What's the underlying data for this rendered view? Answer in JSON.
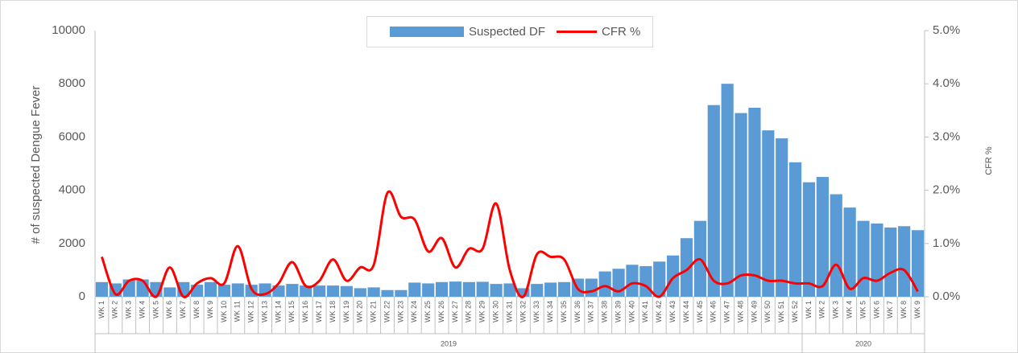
{
  "chart_data": {
    "type": "bar_line",
    "categories": [
      "WK 1",
      "WK 2",
      "WK 3",
      "WK 4",
      "WK 5",
      "WK 6",
      "WK 7",
      "WK 8",
      "WK 9",
      "WK 10",
      "WK 11",
      "WK 12",
      "WK 13",
      "WK 14",
      "WK 15",
      "WK 16",
      "WK 17",
      "WK 18",
      "WK 19",
      "WK 20",
      "WK 21",
      "WK 22",
      "WK 23",
      "WK 24",
      "WK 25",
      "WK 26",
      "WK 27",
      "WK 28",
      "WK 29",
      "WK 30",
      "WK 31",
      "WK 32",
      "WK 33",
      "WK 34",
      "WK 35",
      "WK 36",
      "WK 37",
      "WK 38",
      "WK 39",
      "WK 40",
      "WK 41",
      "WK 42",
      "WK 43",
      "WK 44",
      "WK 45",
      "WK 46",
      "WK 47",
      "WK 48",
      "WK 49",
      "WK 50",
      "WK 51",
      "WK 52",
      "WK 1",
      "WK 2",
      "WK 3",
      "WK 4",
      "WK 5",
      "WK 6",
      "WK 7",
      "WK 8",
      "WK 9"
    ],
    "groups": [
      "2019",
      "2020"
    ],
    "series": [
      {
        "name": "Suspected DF",
        "type": "bar",
        "color": "#5b9bd5",
        "values": [
          550,
          500,
          650,
          650,
          550,
          350,
          550,
          450,
          550,
          450,
          500,
          450,
          500,
          420,
          480,
          420,
          420,
          420,
          400,
          320,
          350,
          250,
          250,
          530,
          500,
          550,
          570,
          550,
          560,
          480,
          500,
          320,
          480,
          530,
          550,
          680,
          680,
          950,
          1050,
          1200,
          1150,
          1320,
          1550,
          2200,
          2850,
          7200,
          8000,
          6900,
          7100,
          6250,
          5950,
          5050,
          4300,
          4500,
          3850,
          3350,
          2850,
          2750,
          2600,
          2650,
          2500
        ]
      },
      {
        "name": "CFR %",
        "type": "line",
        "axis": "y2",
        "color": "#ff0000",
        "values": [
          0.75,
          0.05,
          0.3,
          0.3,
          0.0,
          0.55,
          0.0,
          0.25,
          0.35,
          0.25,
          0.95,
          0.15,
          0.05,
          0.25,
          0.65,
          0.2,
          0.3,
          0.7,
          0.3,
          0.55,
          0.6,
          1.95,
          1.5,
          1.45,
          0.85,
          1.1,
          0.55,
          0.9,
          0.9,
          1.75,
          0.5,
          0.0,
          0.8,
          0.75,
          0.7,
          0.15,
          0.1,
          0.2,
          0.1,
          0.25,
          0.2,
          0.0,
          0.35,
          0.5,
          0.7,
          0.3,
          0.25,
          0.4,
          0.4,
          0.3,
          0.3,
          0.25,
          0.25,
          0.2,
          0.6,
          0.15,
          0.35,
          0.3,
          0.45,
          0.5,
          0.1
        ]
      }
    ],
    "y_label": "# of suspected Dengue Fever",
    "y2_label": "CFR %",
    "ylim": [
      0,
      10000
    ],
    "yticks": [
      0,
      2000,
      4000,
      6000,
      8000,
      10000
    ],
    "y2lim": [
      0,
      5
    ],
    "y2ticks": [
      {
        "value": 0,
        "label": "0.0%"
      },
      {
        "value": 1,
        "label": "1.0%"
      },
      {
        "value": 2,
        "label": "2.0%"
      },
      {
        "value": 3,
        "label": "3.0%"
      },
      {
        "value": 4,
        "label": "4.0%"
      },
      {
        "value": 5,
        "label": "5.0%"
      }
    ],
    "grid": false,
    "legend": "top"
  }
}
